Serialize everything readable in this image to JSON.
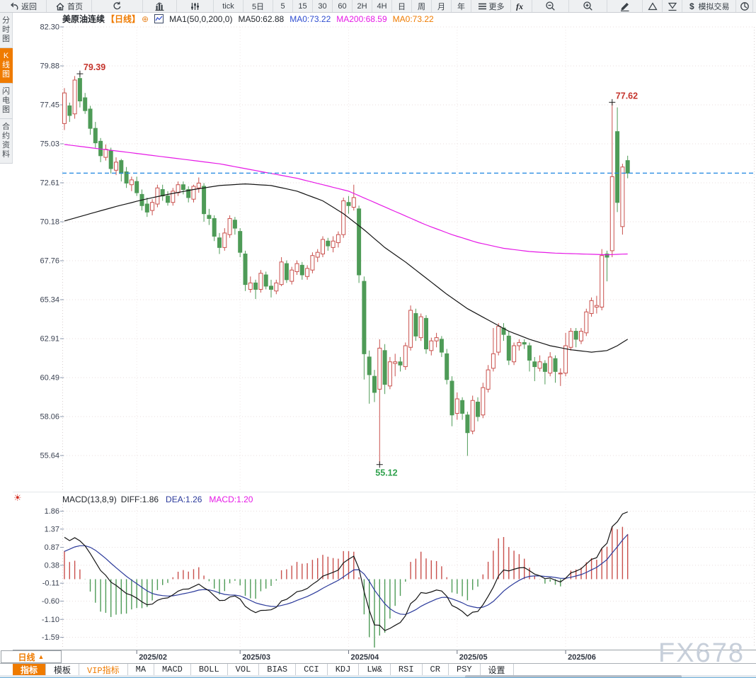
{
  "toolbar": {
    "items": [
      {
        "name": "back-button",
        "icon": "back-arrow-icon",
        "label": "返回"
      },
      {
        "name": "home-button",
        "icon": "home-icon",
        "label": "首页"
      },
      {
        "name": "refresh-button",
        "icon": "refresh-icon",
        "label": ""
      },
      {
        "name": "chart-type-button",
        "icon": "bar-chart-icon",
        "label": ""
      },
      {
        "name": "indicator-params-button",
        "icon": "sliders-icon",
        "label": ""
      },
      {
        "name": "period-tick-button",
        "icon": "",
        "label": "tick"
      },
      {
        "name": "period-5day-button",
        "icon": "",
        "label": "5日"
      },
      {
        "name": "period-5-button",
        "icon": "",
        "label": "5"
      },
      {
        "name": "period-15-button",
        "icon": "",
        "label": "15"
      },
      {
        "name": "period-30-button",
        "icon": "",
        "label": "30"
      },
      {
        "name": "period-60-button",
        "icon": "",
        "label": "60"
      },
      {
        "name": "period-2h-button",
        "icon": "",
        "label": "2H"
      },
      {
        "name": "period-4h-button",
        "icon": "",
        "label": "4H"
      },
      {
        "name": "period-day-button",
        "icon": "",
        "label": "日"
      },
      {
        "name": "period-week-button",
        "icon": "",
        "label": "周"
      },
      {
        "name": "period-month-button",
        "icon": "",
        "label": "月"
      },
      {
        "name": "period-year-button",
        "icon": "",
        "label": "年"
      },
      {
        "name": "more-button",
        "icon": "menu-icon",
        "label": "更多"
      },
      {
        "name": "formula-button",
        "icon": "fx-icon",
        "label": ""
      },
      {
        "name": "zoom-out-button",
        "icon": "zoom-out-icon",
        "label": ""
      },
      {
        "name": "zoom-in-button",
        "icon": "zoom-in-icon",
        "label": ""
      },
      {
        "name": "draw-line-button",
        "icon": "pencil-icon",
        "label": ""
      },
      {
        "name": "triangle-up-button",
        "icon": "triangle-up-icon",
        "label": ""
      },
      {
        "name": "triangle-down-button",
        "icon": "triangle-down-icon",
        "label": ""
      },
      {
        "name": "sim-trade-button",
        "icon": "dollar-icon",
        "label": "模拟交易"
      },
      {
        "name": "globe-button",
        "icon": "globe-icon",
        "label": ""
      }
    ]
  },
  "sidebar": {
    "items": [
      {
        "label": "分时图",
        "active": false
      },
      {
        "label": "K线图",
        "active": true
      },
      {
        "label": "闪电图",
        "active": false
      },
      {
        "label": "合约资料",
        "active": false
      }
    ]
  },
  "chart_header": {
    "title": "美原油连续",
    "period_tag": "【日线】",
    "add_symbol": "⊕",
    "ma_settings": "MA1(50,0,200,0)",
    "ma50_label": "MA50:62.88",
    "ma0_blue_label": "MA0:73.22",
    "ma200_label": "MA200:68.59",
    "ma0_orange_label": "MA0:73.22"
  },
  "macd_header": {
    "formula": "MACD(13,8,9)",
    "diff_label": "DIFF:1.86",
    "dea_label": "DEA:1.26",
    "macd_label": "MACD:1.20"
  },
  "period_button": {
    "label": "日线",
    "arrow": "▲"
  },
  "bottom_tabs": {
    "items": [
      {
        "label": "指标",
        "active": true,
        "vip": false
      },
      {
        "label": "模板",
        "active": false,
        "vip": false
      },
      {
        "label": "VIP指标",
        "active": false,
        "vip": true
      },
      {
        "label": "MA",
        "active": false,
        "vip": false
      },
      {
        "label": "MACD",
        "active": false,
        "vip": false
      },
      {
        "label": "BOLL",
        "active": false,
        "vip": false
      },
      {
        "label": "VOL",
        "active": false,
        "vip": false
      },
      {
        "label": "BIAS",
        "active": false,
        "vip": false
      },
      {
        "label": "CCI",
        "active": false,
        "vip": false
      },
      {
        "label": "KDJ",
        "active": false,
        "vip": false
      },
      {
        "label": "LW&",
        "active": false,
        "vip": false
      },
      {
        "label": "RSI",
        "active": false,
        "vip": false
      },
      {
        "label": "CR",
        "active": false,
        "vip": false
      },
      {
        "label": "PSY",
        "active": false,
        "vip": false
      },
      {
        "label": "设置",
        "active": false,
        "vip": false
      }
    ]
  },
  "watermark": "FX678",
  "colors": {
    "accent_orange": "#ef7b00",
    "up_candle": "#c9504c",
    "down_candle": "#4e9b57",
    "ma50": "#141414",
    "ma200": "#e619e6",
    "diff_line": "#141414",
    "dea_line": "#2b3a9b",
    "price_line": "#1d86e0",
    "annotation_high": "#c5342c",
    "annotation_low": "#2fa14c",
    "grid": "#e8dede",
    "axis_text": "#3b4252"
  },
  "chart_data": {
    "type": "candlestick+macd",
    "symbol": "美原油连续",
    "period": "日线",
    "y_axis_labels": [
      "82.30",
      "79.88",
      "77.45",
      "75.03",
      "72.61",
      "70.18",
      "67.76",
      "65.34",
      "62.91",
      "60.49",
      "58.06",
      "55.64"
    ],
    "x_axis_labels": [
      "2025/02",
      "2025/03",
      "2025/04",
      "2025/05",
      "2025/06"
    ],
    "month_tick_indices": [
      14,
      34,
      55,
      76,
      97
    ],
    "current_price": 73.22,
    "annotations": [
      {
        "text": "79.39",
        "index": 3,
        "price": 79.39,
        "type": "high"
      },
      {
        "text": "77.62",
        "index": 106,
        "price": 77.62,
        "type": "high"
      },
      {
        "text": "55.12",
        "index": 61,
        "price": 55.12,
        "type": "low"
      }
    ],
    "ma50_points": [
      [
        0,
        70.25
      ],
      [
        5,
        70.7
      ],
      [
        10,
        71.15
      ],
      [
        15,
        71.55
      ],
      [
        20,
        71.9
      ],
      [
        25,
        72.2
      ],
      [
        30,
        72.45
      ],
      [
        35,
        72.55
      ],
      [
        40,
        72.45
      ],
      [
        45,
        72.1
      ],
      [
        50,
        71.5
      ],
      [
        54,
        70.7
      ],
      [
        58,
        69.7
      ],
      [
        62,
        68.6
      ],
      [
        66,
        67.7
      ],
      [
        70,
        66.7
      ],
      [
        74,
        65.7
      ],
      [
        78,
        64.8
      ],
      [
        82,
        64.1
      ],
      [
        86,
        63.4
      ],
      [
        90,
        62.9
      ],
      [
        94,
        62.5
      ],
      [
        98,
        62.25
      ],
      [
        102,
        62.1
      ],
      [
        105,
        62.2
      ],
      [
        107,
        62.5
      ],
      [
        109,
        62.9
      ]
    ],
    "ma200_points": [
      [
        0,
        75.0
      ],
      [
        10,
        74.6
      ],
      [
        20,
        74.2
      ],
      [
        30,
        73.8
      ],
      [
        40,
        73.2
      ],
      [
        45,
        72.9
      ],
      [
        50,
        72.5
      ],
      [
        55,
        72.1
      ],
      [
        60,
        71.4
      ],
      [
        65,
        70.7
      ],
      [
        70,
        70.0
      ],
      [
        75,
        69.4
      ],
      [
        80,
        68.9
      ],
      [
        85,
        68.55
      ],
      [
        90,
        68.35
      ],
      [
        95,
        68.25
      ],
      [
        100,
        68.2
      ],
      [
        105,
        68.15
      ],
      [
        109,
        68.2
      ]
    ],
    "macd": {
      "params": [
        13,
        8,
        9
      ],
      "diff": 1.86,
      "dea": 1.26,
      "macd": 1.2,
      "y_axis_labels": [
        "1.86",
        "1.37",
        "0.87",
        "0.38",
        "-0.11",
        "-0.60",
        "-1.10",
        "-1.59"
      ],
      "seed_closes": [
        70.5,
        70.8,
        71.2,
        71.7,
        72.3,
        73.0,
        73.8,
        74.6,
        75.4,
        76.2,
        76.9,
        77.5
      ]
    },
    "candles": [
      [
        76.3,
        78.5,
        75.9,
        78.2
      ],
      [
        77.4,
        77.6,
        76.4,
        76.8
      ],
      [
        76.9,
        79.25,
        76.6,
        79.0
      ],
      [
        79.1,
        79.39,
        77.3,
        77.7
      ],
      [
        77.9,
        78.2,
        76.9,
        77.1
      ],
      [
        77.2,
        77.4,
        75.6,
        76.0
      ],
      [
        76.0,
        76.4,
        74.8,
        75.1
      ],
      [
        75.2,
        75.4,
        73.9,
        74.3
      ],
      [
        74.2,
        75.0,
        74.0,
        74.7
      ],
      [
        74.6,
        74.8,
        73.2,
        73.5
      ],
      [
        73.4,
        74.2,
        73.1,
        73.9
      ],
      [
        74.0,
        74.1,
        72.7,
        73.2
      ],
      [
        73.3,
        73.6,
        72.3,
        72.6
      ],
      [
        72.5,
        73.0,
        72.1,
        72.8
      ],
      [
        72.7,
        73.0,
        71.8,
        72.0
      ],
      [
        71.9,
        72.2,
        70.9,
        71.2
      ],
      [
        71.3,
        71.7,
        70.5,
        70.8
      ],
      [
        70.9,
        71.6,
        70.6,
        71.4
      ],
      [
        71.3,
        72.5,
        71.1,
        72.3
      ],
      [
        72.2,
        72.5,
        71.5,
        71.8
      ],
      [
        71.8,
        72.1,
        71.2,
        71.4
      ],
      [
        71.4,
        72.3,
        71.2,
        72.1
      ],
      [
        72.0,
        72.7,
        71.8,
        72.5
      ],
      [
        72.5,
        72.7,
        71.9,
        72.2
      ],
      [
        72.2,
        72.4,
        71.4,
        71.7
      ],
      [
        71.6,
        72.5,
        71.4,
        72.4
      ],
      [
        72.3,
        72.95,
        72.0,
        72.6
      ],
      [
        72.4,
        72.6,
        70.2,
        70.7
      ],
      [
        70.6,
        71.0,
        70.0,
        70.4
      ],
      [
        70.4,
        70.6,
        69.0,
        69.3
      ],
      [
        69.2,
        69.5,
        68.2,
        68.6
      ],
      [
        68.6,
        69.8,
        68.4,
        69.5
      ],
      [
        69.4,
        70.6,
        69.2,
        70.4
      ],
      [
        70.3,
        70.5,
        69.4,
        69.8
      ],
      [
        69.6,
        69.8,
        68.0,
        68.3
      ],
      [
        68.2,
        68.4,
        65.9,
        66.3
      ],
      [
        66.0,
        66.8,
        65.8,
        66.4
      ],
      [
        66.4,
        66.6,
        65.4,
        66.0
      ],
      [
        66.0,
        67.2,
        65.8,
        67.0
      ],
      [
        66.9,
        67.1,
        66.0,
        66.2
      ],
      [
        66.2,
        66.6,
        65.5,
        66.0
      ],
      [
        65.9,
        66.6,
        65.7,
        66.4
      ],
      [
        66.3,
        68.0,
        66.2,
        67.7
      ],
      [
        67.6,
        67.8,
        66.4,
        66.6
      ],
      [
        66.5,
        67.4,
        66.3,
        67.2
      ],
      [
        67.1,
        67.8,
        66.9,
        67.6
      ],
      [
        67.5,
        67.7,
        66.6,
        66.9
      ],
      [
        66.8,
        67.5,
        66.6,
        67.3
      ],
      [
        67.2,
        68.3,
        67.0,
        68.1
      ],
      [
        68.0,
        68.5,
        67.7,
        68.3
      ],
      [
        68.2,
        69.3,
        68.0,
        69.1
      ],
      [
        69.0,
        69.2,
        68.4,
        68.7
      ],
      [
        68.6,
        69.3,
        68.3,
        69.0
      ],
      [
        68.9,
        69.6,
        68.6,
        69.4
      ],
      [
        69.4,
        71.7,
        69.2,
        71.5
      ],
      [
        71.4,
        71.8,
        70.7,
        71.2
      ],
      [
        71.1,
        72.5,
        70.9,
        71.7
      ],
      [
        71.0,
        71.2,
        66.4,
        66.9
      ],
      [
        66.5,
        66.8,
        60.4,
        62.0
      ],
      [
        61.8,
        62.2,
        58.9,
        60.7
      ],
      [
        60.6,
        61.0,
        59.0,
        59.6
      ],
      [
        59.8,
        62.9,
        55.12,
        62.35
      ],
      [
        62.2,
        62.6,
        59.5,
        60.1
      ],
      [
        60.0,
        61.8,
        59.8,
        61.5
      ],
      [
        61.4,
        62.0,
        60.6,
        61.5
      ],
      [
        61.5,
        61.8,
        60.9,
        61.3
      ],
      [
        61.2,
        62.7,
        61.0,
        62.5
      ],
      [
        62.4,
        65.0,
        62.2,
        64.7
      ],
      [
        64.5,
        64.8,
        62.8,
        63.1
      ],
      [
        63.0,
        64.5,
        62.8,
        64.3
      ],
      [
        64.2,
        64.4,
        62.0,
        62.3
      ],
      [
        62.2,
        63.0,
        61.9,
        62.8
      ],
      [
        62.8,
        63.3,
        62.4,
        63.0
      ],
      [
        62.9,
        63.1,
        61.8,
        62.1
      ],
      [
        62.0,
        62.3,
        60.1,
        60.4
      ],
      [
        60.3,
        60.6,
        57.5,
        58.2
      ],
      [
        58.3,
        59.6,
        57.9,
        59.2
      ],
      [
        59.1,
        59.3,
        57.9,
        58.3
      ],
      [
        58.2,
        58.4,
        55.66,
        57.1
      ],
      [
        57.2,
        59.4,
        57.0,
        59.1
      ],
      [
        59.0,
        59.3,
        57.8,
        58.1
      ],
      [
        58.2,
        60.2,
        58.0,
        59.9
      ],
      [
        59.8,
        61.3,
        59.6,
        61.0
      ],
      [
        61.1,
        63.6,
        60.9,
        62.0
      ],
      [
        62.1,
        63.9,
        61.9,
        63.7
      ],
      [
        63.6,
        63.9,
        62.8,
        63.2
      ],
      [
        63.1,
        63.4,
        61.3,
        61.6
      ],
      [
        61.5,
        62.7,
        61.3,
        62.5
      ],
      [
        62.5,
        62.9,
        62.2,
        62.7
      ],
      [
        62.7,
        62.9,
        62.3,
        62.6
      ],
      [
        62.5,
        62.7,
        60.9,
        61.6
      ],
      [
        61.5,
        61.8,
        60.3,
        61.2
      ],
      [
        61.1,
        61.9,
        60.9,
        61.5
      ],
      [
        61.4,
        61.6,
        60.1,
        60.9
      ],
      [
        60.8,
        62.1,
        60.6,
        61.8
      ],
      [
        61.7,
        61.9,
        60.2,
        60.9
      ],
      [
        60.8,
        61.1,
        60.0,
        60.8
      ],
      [
        60.8,
        63.3,
        60.6,
        62.5
      ],
      [
        62.4,
        63.6,
        62.2,
        63.4
      ],
      [
        63.4,
        63.6,
        62.4,
        62.9
      ],
      [
        62.8,
        63.6,
        62.6,
        63.4
      ],
      [
        63.3,
        64.8,
        63.1,
        64.6
      ],
      [
        64.5,
        65.5,
        64.3,
        65.3
      ],
      [
        64.9,
        65.6,
        64.5,
        65.0
      ],
      [
        64.9,
        68.5,
        64.7,
        68.1
      ],
      [
        68.2,
        68.4,
        66.5,
        68.0
      ],
      [
        68.4,
        77.62,
        68.0,
        73.0
      ],
      [
        75.8,
        77.3,
        70.8,
        71.4
      ],
      [
        69.9,
        73.8,
        69.4,
        73.6
      ],
      [
        74.0,
        74.3,
        72.9,
        73.22
      ]
    ]
  }
}
